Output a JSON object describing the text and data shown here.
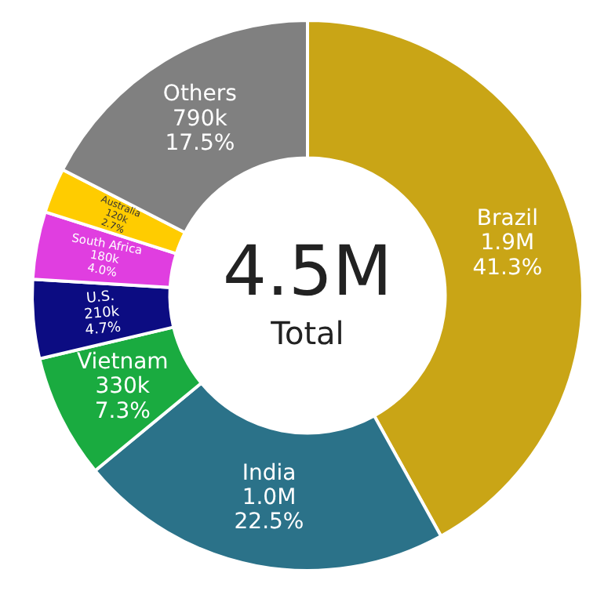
{
  "chart_data": {
    "type": "donut",
    "categories": [
      "Brazil",
      "India",
      "Vietnam",
      "U.S.",
      "South Africa",
      "Australia",
      "Others"
    ],
    "values": [
      1900000,
      1000000,
      330000,
      210000,
      180000,
      120000,
      790000
    ],
    "value_labels": [
      "1.9M\n41.3%",
      "1.0M\n22.5%",
      "330k\n7.3%",
      "210k\n4.7%",
      "180k\n4.0%",
      "120k\n2.7%",
      "790k\n17.5%"
    ],
    "colors": [
      "#c9a516",
      "#2b7289",
      "#1aab40",
      "#0c0c82",
      "#e03ee0",
      "#ffcc00",
      "#808080"
    ],
    "annotations": [
      "4.5M",
      "Total"
    ],
    "legend": false
  }
}
